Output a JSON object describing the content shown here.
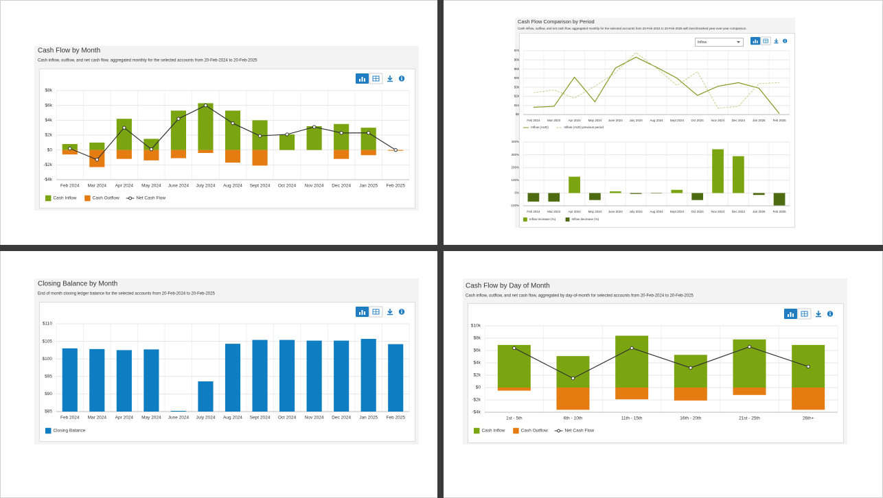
{
  "chart_data": [
    {
      "type": "combo",
      "title": "Cash Flow by Month",
      "subtitle": "Cash inflow, outflow, and net cash flow, aggregated monthly for the selected accounts from 20-Feb-2024 to 20-Feb-2025",
      "categories": [
        "Feb 2024",
        "Mar 2024",
        "Apr 2024",
        "May 2024",
        "June 2024",
        "July 2024",
        "Aug 2024",
        "Sept 2024",
        "Oct 2024",
        "Nov 2024",
        "Dec 2024",
        "Jan 2025",
        "Feb 2025"
      ],
      "series": [
        {
          "name": "Cash Inflow",
          "type": "bar",
          "color": "#7aa510",
          "values": [
            800,
            1000,
            4200,
            1500,
            5300,
            6300,
            5300,
            4000,
            2100,
            3200,
            3500,
            3000,
            0
          ]
        },
        {
          "name": "Cash Outflow",
          "type": "bar",
          "color": "#e57c12",
          "values": [
            -600,
            -2300,
            -1200,
            -1400,
            -1100,
            -400,
            -1700,
            -2100,
            0,
            0,
            -1200,
            -700,
            -100
          ]
        },
        {
          "name": "Net Cash Flow",
          "type": "line",
          "markers": true,
          "color": "#333333",
          "values": [
            200,
            -1300,
            3000,
            100,
            4200,
            6000,
            3600,
            1900,
            2100,
            3100,
            2300,
            2300,
            0
          ]
        }
      ],
      "ylim": [
        -4000,
        8000
      ],
      "yticks": [
        {
          "value": -4000,
          "label": "-$4k"
        },
        {
          "value": -2000,
          "label": "-$2k"
        },
        {
          "value": 0,
          "label": "$0"
        },
        {
          "value": 2000,
          "label": "$2k"
        },
        {
          "value": 4000,
          "label": "$4k"
        },
        {
          "value": 6000,
          "label": "$6k"
        },
        {
          "value": 8000,
          "label": "$8k"
        }
      ],
      "grid": true
    },
    {
      "type": "line",
      "title": "Cash Flow Comparison by Period",
      "subtitle": "Cash inflow, outflow, and net cash flow, aggregated monthly for the selected accounts from 20-Feb-2024 to 20-Feb-2025 with benchmarked year-over-year comparison.",
      "dropdown": "Inflow",
      "categories": [
        "Feb 2024",
        "Mar 2024",
        "Apr 2024",
        "May 2024",
        "June 2024",
        "July 2024",
        "Aug 2024",
        "Sept 2024",
        "Oct 2024",
        "Nov 2024",
        "Dec 2024",
        "Jan 2025",
        "Feb 2025"
      ],
      "series": [
        {
          "name": "Inflow (AUD)",
          "color": "#7f9a1e",
          "values": [
            800,
            900,
            4100,
            1400,
            5100,
            6300,
            5200,
            4000,
            2100,
            3100,
            3500,
            2900,
            100
          ]
        },
        {
          "name": "Inflow (AUD) previous period",
          "color": "#b9c777",
          "dash": true,
          "values": [
            2400,
            2700,
            1800,
            3100,
            4600,
            6800,
            5100,
            3200,
            4700,
            700,
            900,
            3400,
            3500
          ]
        }
      ],
      "ylim": [
        0,
        7000
      ],
      "yticks": [
        {
          "value": 0,
          "label": "$0"
        },
        {
          "value": 1000,
          "label": "$1k"
        },
        {
          "value": 2000,
          "label": "$2k"
        },
        {
          "value": 3000,
          "label": "$3k"
        },
        {
          "value": 4000,
          "label": "$4k"
        },
        {
          "value": 5000,
          "label": "$5k"
        },
        {
          "value": 6000,
          "label": "$6k"
        },
        {
          "value": 7000,
          "label": "$7k"
        }
      ],
      "grid": true
    },
    {
      "type": "bar",
      "categories": [
        "Feb 2024",
        "Mar 2024",
        "Apr 2024",
        "May 2024",
        "June 2024",
        "July 2024",
        "Aug 2024",
        "Sept 2024",
        "Oct 2024",
        "Nov 2024",
        "Dec 2024",
        "Jan 2025",
        "Feb 2025"
      ],
      "series": [
        {
          "name": "Inflow increase (%)",
          "color": "#7aa510",
          "values": [
            null,
            null,
            128,
            null,
            13,
            null,
            null,
            25,
            null,
            343,
            289,
            null,
            null
          ]
        },
        {
          "name": "Inflow decrease (%)",
          "color": "#4f6b12",
          "values": [
            -67,
            -67,
            null,
            -55,
            null,
            -7,
            -3,
            null,
            -55,
            null,
            null,
            -15,
            -97
          ]
        }
      ],
      "ylim": [
        -100,
        400
      ],
      "yticks": [
        {
          "value": -100,
          "label": "-100%"
        },
        {
          "value": 0,
          "label": "0%"
        },
        {
          "value": 100,
          "label": "100%"
        },
        {
          "value": 200,
          "label": "200%"
        },
        {
          "value": 300,
          "label": "300%"
        },
        {
          "value": 400,
          "label": "400%"
        }
      ],
      "grid": true
    },
    {
      "type": "bar",
      "title": "Closing Balance by Month",
      "subtitle": "End of month closing ledger balance for the selected accounts from 20-Feb-2024 to 20-Feb-2025",
      "categories": [
        "Feb 2024",
        "Mar 2024",
        "Apr 2024",
        "May 2024",
        "June 2024",
        "July 2024",
        "Aug 2024",
        "Sept 2024",
        "Oct 2024",
        "Nov 2024",
        "Dec 2024",
        "Jan 2025",
        "Feb 2025"
      ],
      "series": [
        {
          "name": "Closing Balance",
          "color": "#0f7dc2",
          "values": [
            103,
            102.8,
            102.5,
            102.7,
            85.2,
            93.6,
            104.3,
            105.4,
            105.4,
            105.2,
            105.2,
            105.7,
            104.2
          ]
        }
      ],
      "ylim": [
        85,
        110
      ],
      "yticks": [
        {
          "value": 85,
          "label": "$85"
        },
        {
          "value": 90,
          "label": "$90"
        },
        {
          "value": 95,
          "label": "$95"
        },
        {
          "value": 100,
          "label": "$100"
        },
        {
          "value": 105,
          "label": "$105"
        },
        {
          "value": 110,
          "label": "$110"
        }
      ],
      "grid": true
    },
    {
      "type": "combo",
      "title": "Cash Flow by Day of Month",
      "subtitle": "Cash inflow, outflow, and net cash flow, aggregated by day-of-month for selected accounts from 20-Feb-2024 to 20-Feb-2025",
      "categories": [
        "1st - 5th",
        "6th - 10th",
        "11th - 15th",
        "16th - 20th",
        "21st - 25th",
        "26th+"
      ],
      "series": [
        {
          "name": "Cash Inflow",
          "type": "bar",
          "color": "#7aa510",
          "values": [
            6900,
            5100,
            8400,
            5300,
            7800,
            6900
          ]
        },
        {
          "name": "Cash Outflow",
          "type": "bar",
          "color": "#e57c12",
          "values": [
            -500,
            -3600,
            -1900,
            -2100,
            -1200,
            -3600
          ]
        },
        {
          "name": "Net Cash Flow",
          "type": "line",
          "markers": true,
          "color": "#333333",
          "values": [
            6400,
            1500,
            6400,
            3200,
            6600,
            3400
          ]
        }
      ],
      "ylim": [
        -4000,
        10000
      ],
      "yticks": [
        {
          "value": -4000,
          "label": "-$4k"
        },
        {
          "value": -2000,
          "label": "-$2k"
        },
        {
          "value": 0,
          "label": "$0"
        },
        {
          "value": 2000,
          "label": "$2k"
        },
        {
          "value": 4000,
          "label": "$4k"
        },
        {
          "value": 6000,
          "label": "$6k"
        },
        {
          "value": 8000,
          "label": "$8k"
        },
        {
          "value": 10000,
          "label": "$10k"
        }
      ],
      "grid": true
    }
  ]
}
